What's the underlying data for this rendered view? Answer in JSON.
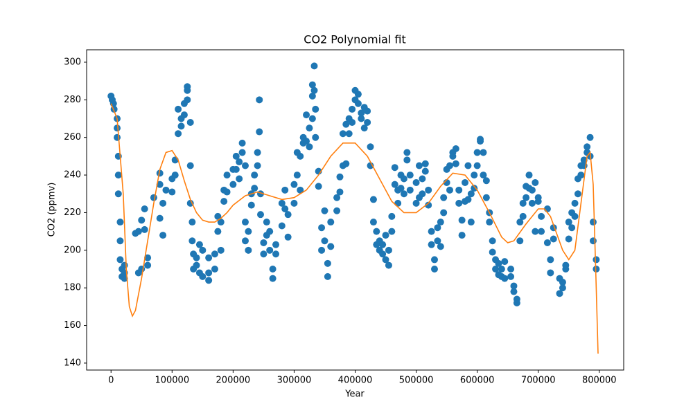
{
  "chart_data": {
    "type": "scatter",
    "title": "CO2 Polynomial fit",
    "x_label": "Year",
    "y_label": "CO2 (ppmv)",
    "xlim": [
      -40000,
      840000
    ],
    "ylim": [
      136.3,
      306.6
    ],
    "xticks": [
      0,
      100000,
      200000,
      300000,
      400000,
      500000,
      600000,
      700000,
      800000
    ],
    "yticks": [
      140,
      160,
      180,
      200,
      220,
      240,
      260,
      280,
      300
    ],
    "series": [
      {
        "type": "scatter",
        "color": "#1f77b4",
        "x": [
          0,
          2000,
          4000,
          5000,
          10000,
          10000,
          10000,
          12000,
          12000,
          12000,
          15000,
          15000,
          15000,
          18000,
          18000,
          22000,
          22000,
          22000,
          40000,
          45000,
          45000,
          50000,
          50000,
          55000,
          55000,
          60000,
          60000,
          70000,
          80000,
          80000,
          80000,
          85000,
          85000,
          90000,
          100000,
          100000,
          105000,
          105000,
          110000,
          110000,
          115000,
          115000,
          120000,
          120000,
          125000,
          125000,
          125000,
          130000,
          130000,
          130000,
          133000,
          133000,
          135000,
          135000,
          140000,
          140000,
          145000,
          145000,
          150000,
          150000,
          160000,
          160000,
          160000,
          170000,
          170000,
          175000,
          175000,
          180000,
          180000,
          185000,
          185000,
          190000,
          190000,
          200000,
          200000,
          205000,
          205000,
          210000,
          210000,
          215000,
          215000,
          220000,
          220000,
          220000,
          225000,
          225000,
          230000,
          230000,
          235000,
          235000,
          240000,
          240000,
          243000,
          243000,
          245000,
          245000,
          250000,
          250000,
          255000,
          255000,
          260000,
          260000,
          265000,
          265000,
          270000,
          270000,
          280000,
          280000,
          285000,
          285000,
          290000,
          290000,
          300000,
          300000,
          305000,
          305000,
          310000,
          310000,
          315000,
          315000,
          320000,
          320000,
          325000,
          325000,
          330000,
          330000,
          330000,
          333000,
          333000,
          335000,
          335000,
          340000,
          340000,
          345000,
          345000,
          350000,
          350000,
          355000,
          355000,
          360000,
          360000,
          370000,
          370000,
          375000,
          375000,
          380000,
          380000,
          385000,
          385000,
          390000,
          390000,
          395000,
          395000,
          400000,
          400000,
          405000,
          405000,
          410000,
          410000,
          415000,
          415000,
          420000,
          420000,
          425000,
          425000,
          430000,
          430000,
          435000,
          435000,
          440000,
          440000,
          445000,
          445000,
          450000,
          450000,
          455000,
          455000,
          460000,
          460000,
          465000,
          465000,
          470000,
          470000,
          475000,
          475000,
          480000,
          480000,
          485000,
          485000,
          490000,
          490000,
          500000,
          500000,
          505000,
          505000,
          510000,
          510000,
          515000,
          515000,
          520000,
          520000,
          525000,
          525000,
          530000,
          530000,
          535000,
          535000,
          540000,
          540000,
          545000,
          545000,
          550000,
          550000,
          555000,
          555000,
          560000,
          560000,
          565000,
          565000,
          570000,
          570000,
          575000,
          575000,
          580000,
          580000,
          585000,
          585000,
          590000,
          590000,
          595000,
          595000,
          600000,
          600000,
          605000,
          605000,
          610000,
          610000,
          615000,
          615000,
          620000,
          620000,
          625000,
          625000,
          630000,
          630000,
          635000,
          635000,
          640000,
          640000,
          645000,
          645000,
          655000,
          655000,
          660000,
          660000,
          665000,
          665000,
          670000,
          670000,
          675000,
          675000,
          680000,
          680000,
          685000,
          685000,
          690000,
          690000,
          695000,
          695000,
          700000,
          700000,
          705000,
          705000,
          715000,
          715000,
          720000,
          720000,
          725000,
          725000,
          735000,
          735000,
          740000,
          740000,
          745000,
          745000,
          750000,
          750000,
          755000,
          755000,
          760000,
          760000,
          765000,
          765000,
          770000,
          770000,
          775000,
          775000,
          780000,
          780000,
          785000,
          785000,
          790000,
          790000,
          795000,
          795000
        ],
        "values": [
          282,
          280,
          278,
          275,
          270,
          265,
          260,
          250,
          240,
          230,
          215,
          205,
          195,
          190,
          186,
          185,
          188,
          192,
          209,
          210,
          188,
          190,
          216,
          211,
          222,
          196,
          192,
          228,
          217,
          235,
          241,
          208,
          225,
          232,
          231,
          238,
          240,
          248,
          262,
          275,
          266,
          270,
          272,
          278,
          285,
          287,
          280,
          268,
          245,
          225,
          215,
          205,
          198,
          190,
          196,
          192,
          203,
          188,
          200,
          186,
          196,
          188,
          184,
          198,
          190,
          210,
          218,
          200,
          215,
          226,
          232,
          240,
          231,
          243,
          235,
          250,
          243,
          247,
          238,
          257,
          252,
          245,
          215,
          205,
          200,
          210,
          230,
          224,
          240,
          233,
          252,
          245,
          280,
          263,
          230,
          219,
          204,
          198,
          208,
          215,
          200,
          210,
          190,
          185,
          198,
          203,
          213,
          225,
          232,
          222,
          207,
          219,
          235,
          225,
          240,
          252,
          250,
          232,
          257,
          260,
          272,
          258,
          255,
          265,
          270,
          282,
          288,
          298,
          285,
          260,
          275,
          234,
          242,
          212,
          200,
          221,
          205,
          193,
          186,
          202,
          215,
          221,
          228,
          231,
          239,
          245,
          262,
          267,
          246,
          262,
          270,
          275,
          268,
          280,
          285,
          278,
          283,
          270,
          273,
          276,
          265,
          274,
          268,
          255,
          245,
          227,
          215,
          210,
          203,
          200,
          205,
          198,
          203,
          208,
          195,
          192,
          200,
          218,
          210,
          235,
          244,
          225,
          232,
          233,
          240,
          230,
          238,
          252,
          248,
          240,
          232,
          236,
          225,
          245,
          228,
          238,
          230,
          246,
          242,
          232,
          224,
          210,
          203,
          195,
          190,
          212,
          205,
          202,
          215,
          228,
          220,
          236,
          243,
          245,
          232,
          252,
          250,
          254,
          246,
          232,
          225,
          216,
          208,
          226,
          236,
          245,
          227,
          215,
          230,
          233,
          240,
          252,
          245,
          258,
          259,
          252,
          240,
          237,
          228,
          220,
          215,
          205,
          199,
          195,
          190,
          193,
          187,
          190,
          186,
          194,
          185,
          190,
          186,
          181,
          178,
          172,
          174,
          205,
          215,
          225,
          218,
          228,
          234,
          240,
          233,
          225,
          232,
          210,
          236,
          226,
          228,
          218,
          210,
          204,
          222,
          195,
          188,
          206,
          212,
          185,
          177,
          183,
          180,
          192,
          190,
          206,
          215,
          220,
          212,
          225,
          218,
          230,
          238,
          240,
          245,
          245,
          248,
          252,
          255,
          260,
          250,
          215,
          205,
          195,
          190
        ]
      },
      {
        "type": "line",
        "color": "#ff7f0e",
        "x": [
          0,
          10000,
          20000,
          25000,
          30000,
          35000,
          40000,
          50000,
          60000,
          70000,
          80000,
          90000,
          100000,
          110000,
          120000,
          130000,
          140000,
          150000,
          160000,
          170000,
          180000,
          190000,
          200000,
          220000,
          240000,
          260000,
          280000,
          300000,
          320000,
          340000,
          360000,
          380000,
          400000,
          420000,
          440000,
          460000,
          480000,
          500000,
          520000,
          540000,
          560000,
          580000,
          600000,
          620000,
          640000,
          650000,
          660000,
          680000,
          700000,
          710000,
          720000,
          740000,
          750000,
          760000,
          770000,
          780000,
          785000,
          790000,
          795000,
          798000
        ],
        "values": [
          278,
          270,
          230,
          190,
          170,
          165,
          168,
          185,
          205,
          225,
          243,
          252,
          253,
          248,
          237,
          227,
          220,
          216,
          215,
          215,
          217,
          220,
          224,
          229,
          231,
          229,
          227,
          228,
          232,
          240,
          250,
          257,
          257,
          250,
          238,
          226,
          220,
          220,
          225,
          234,
          241,
          240,
          232,
          220,
          207,
          204,
          205,
          214,
          222,
          222,
          218,
          200,
          195,
          200,
          225,
          250,
          252,
          235,
          180,
          145
        ]
      }
    ]
  }
}
